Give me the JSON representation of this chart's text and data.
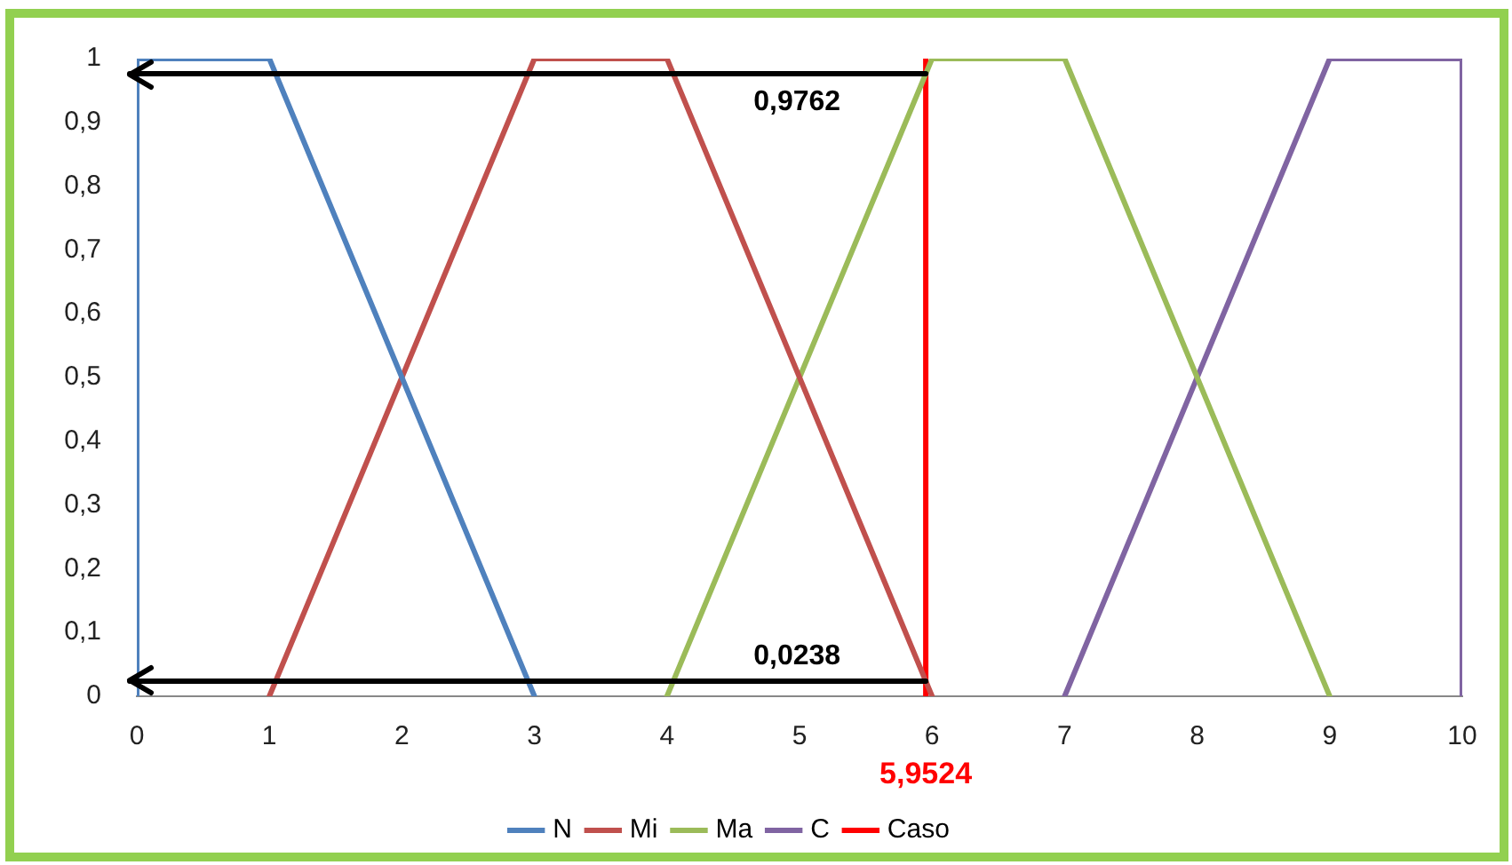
{
  "chart_data": {
    "type": "line",
    "series": [
      {
        "name": "N",
        "color": "#4f81bd",
        "x": [
          0,
          0,
          1,
          3
        ],
        "values": [
          0,
          1,
          1,
          0
        ]
      },
      {
        "name": "Mi",
        "color": "#c0504d",
        "x": [
          1,
          3,
          4,
          6
        ],
        "values": [
          0,
          1,
          1,
          0
        ]
      },
      {
        "name": "Ma",
        "color": "#9bbb59",
        "x": [
          4,
          6,
          7,
          9
        ],
        "values": [
          0,
          1,
          1,
          0
        ]
      },
      {
        "name": "C",
        "color": "#8064a2",
        "x": [
          7,
          9,
          10,
          10
        ],
        "values": [
          0,
          1,
          1,
          0
        ]
      },
      {
        "name": "Caso",
        "color": "#ff0000",
        "x": [
          5.9524,
          5.9524
        ],
        "values": [
          0,
          1
        ]
      }
    ],
    "xlim": [
      0,
      10
    ],
    "xticks": [
      0,
      1,
      2,
      3,
      4,
      5,
      6,
      7,
      8,
      9,
      10
    ],
    "ylim": [
      0,
      1
    ],
    "yticks": [
      0,
      {
        "value": 0.1,
        "label": "0,1"
      },
      {
        "value": 0.2,
        "label": "0,2"
      },
      {
        "value": 0.3,
        "label": "0,3"
      },
      {
        "value": 0.4,
        "label": "0,4"
      },
      {
        "value": 0.5,
        "label": "0,5"
      },
      {
        "value": 0.6,
        "label": "0,6"
      },
      {
        "value": 0.7,
        "label": "0,7"
      },
      {
        "value": 0.8,
        "label": "0,8"
      },
      {
        "value": 0.9,
        "label": "0,9"
      },
      1
    ],
    "ref_lines": [
      {
        "axis": "y",
        "value": 0.9762,
        "label": "0,9762",
        "color": "#000000"
      },
      {
        "axis": "y",
        "value": 0.0238,
        "label": "0,0238",
        "color": "#000000"
      }
    ],
    "annotations": [
      {
        "text": "5,9524",
        "x": 5.9524,
        "y": 0
      }
    ],
    "grid": false,
    "legend": "bottom",
    "marker": "none",
    "line_style": "solid"
  }
}
